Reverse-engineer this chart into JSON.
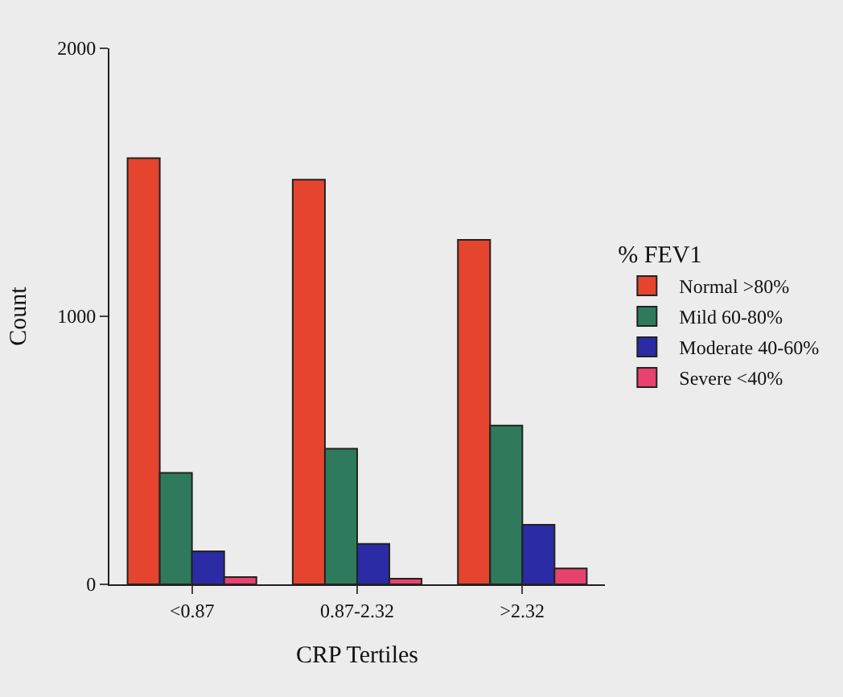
{
  "chart_data": {
    "type": "bar",
    "xlabel": "CRP Tertiles",
    "ylabel": "Count",
    "legend_title": "% FEV1",
    "categories": [
      "<0.87",
      "0.87-2.32",
      ">2.32"
    ],
    "series": [
      {
        "name": "Normal >80%",
        "color": "#e5452e",
        "values": [
          1590,
          1510,
          1285
        ]
      },
      {
        "name": "Mild 60-80%",
        "color": "#2f7a5d",
        "values": [
          416,
          506,
          592
        ]
      },
      {
        "name": "Moderate 40-60%",
        "color": "#2b2ba6",
        "values": [
          123,
          151,
          222
        ]
      },
      {
        "name": "Severe <40%",
        "color": "#e6436e",
        "values": [
          27,
          21,
          59
        ]
      }
    ],
    "ylim": [
      0,
      2000
    ],
    "yticks": [
      0,
      1000,
      2000
    ],
    "grid": false,
    "legend": "right"
  }
}
